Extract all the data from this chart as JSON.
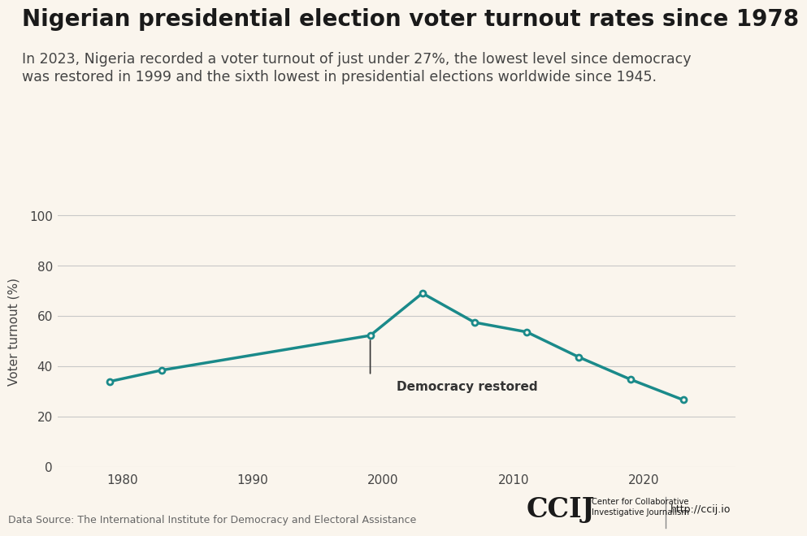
{
  "title": "Nigerian presidential election voter turnout rates since 1978",
  "subtitle_line1": "In 2023, Nigeria recorded a voter turnout of just under 27%, the lowest level since democracy",
  "subtitle_line2": "was restored in 1999 and the sixth lowest in presidential elections worldwide since 1945.",
  "years": [
    1979,
    1983,
    1999,
    2003,
    2007,
    2011,
    2015,
    2019,
    2023
  ],
  "turnout": [
    34.0,
    38.5,
    52.3,
    69.1,
    57.5,
    53.7,
    43.7,
    34.75,
    26.7
  ],
  "line_color": "#1a8a8a",
  "marker_color": "#1a8a8a",
  "background_color": "#faf5ed",
  "annotation_text": "Democracy restored",
  "annotation_year": 1999,
  "annotation_turnout": 52.3,
  "ylabel": "Voter turnout (%)",
  "yticks": [
    0,
    20,
    40,
    60,
    80,
    100
  ],
  "xticks": [
    1980,
    1990,
    2000,
    2010,
    2020
  ],
  "xlim": [
    1975,
    2027
  ],
  "ylim": [
    0,
    108
  ],
  "data_source": "Data Source: The International Institute for Democracy and Electoral Assistance",
  "logo_text": "CCIJ",
  "logo_subtext": "Center for Collaborative\nInvestigative Journalism",
  "url_text": "http://ccij.io",
  "grid_color": "#c8c8c8",
  "title_fontsize": 20,
  "subtitle_fontsize": 12.5,
  "axis_label_fontsize": 11,
  "tick_fontsize": 11,
  "annotation_fontsize": 11,
  "footer_fontsize": 9
}
